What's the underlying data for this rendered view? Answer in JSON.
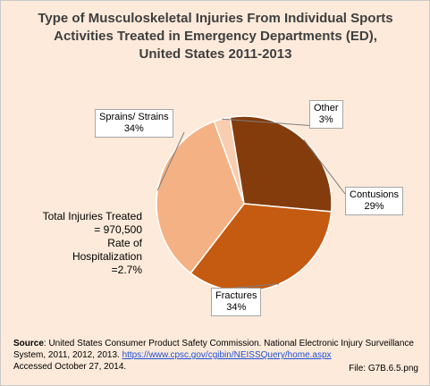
{
  "title": {
    "line1": "Type of Musculoskeletal Injuries From Individual Sports",
    "line2": "Activities Treated in Emergency Departments (ED),",
    "line3": "United States 2011-2013"
  },
  "chart_data": {
    "type": "pie",
    "title": "Type of Musculoskeletal Injuries From Individual Sports Activities Treated in Emergency Departments (ED), United States 2011-2013",
    "slices": [
      {
        "name": "Other",
        "value": 3,
        "label": "3%",
        "color": "#f9cdb0"
      },
      {
        "name": "Contusions",
        "value": 29,
        "label": "29%",
        "color": "#843c0c"
      },
      {
        "name": "Fractures",
        "value": 34,
        "label": "34%",
        "color": "#c55a11"
      },
      {
        "name": "Sprains/ Strains",
        "value": 34,
        "label": "34%",
        "color": "#f4b183"
      }
    ]
  },
  "stats": {
    "line1": "Total Injuries Treated",
    "line2": "= 970,500",
    "line3": "Rate of Hospitalization",
    "line4": "=2.7%"
  },
  "source": {
    "label": "Source",
    "text": ": United States Consumer Product Safety Commission. National Electronic Injury Surveillance System, 2011, 2012, 2013. ",
    "link": "https://www.cpsc.gov/cgibin/NEISSQuery/home.aspx",
    "accessed": "Accessed October 27, 2014."
  },
  "file": "File: G7B.6.5.png"
}
